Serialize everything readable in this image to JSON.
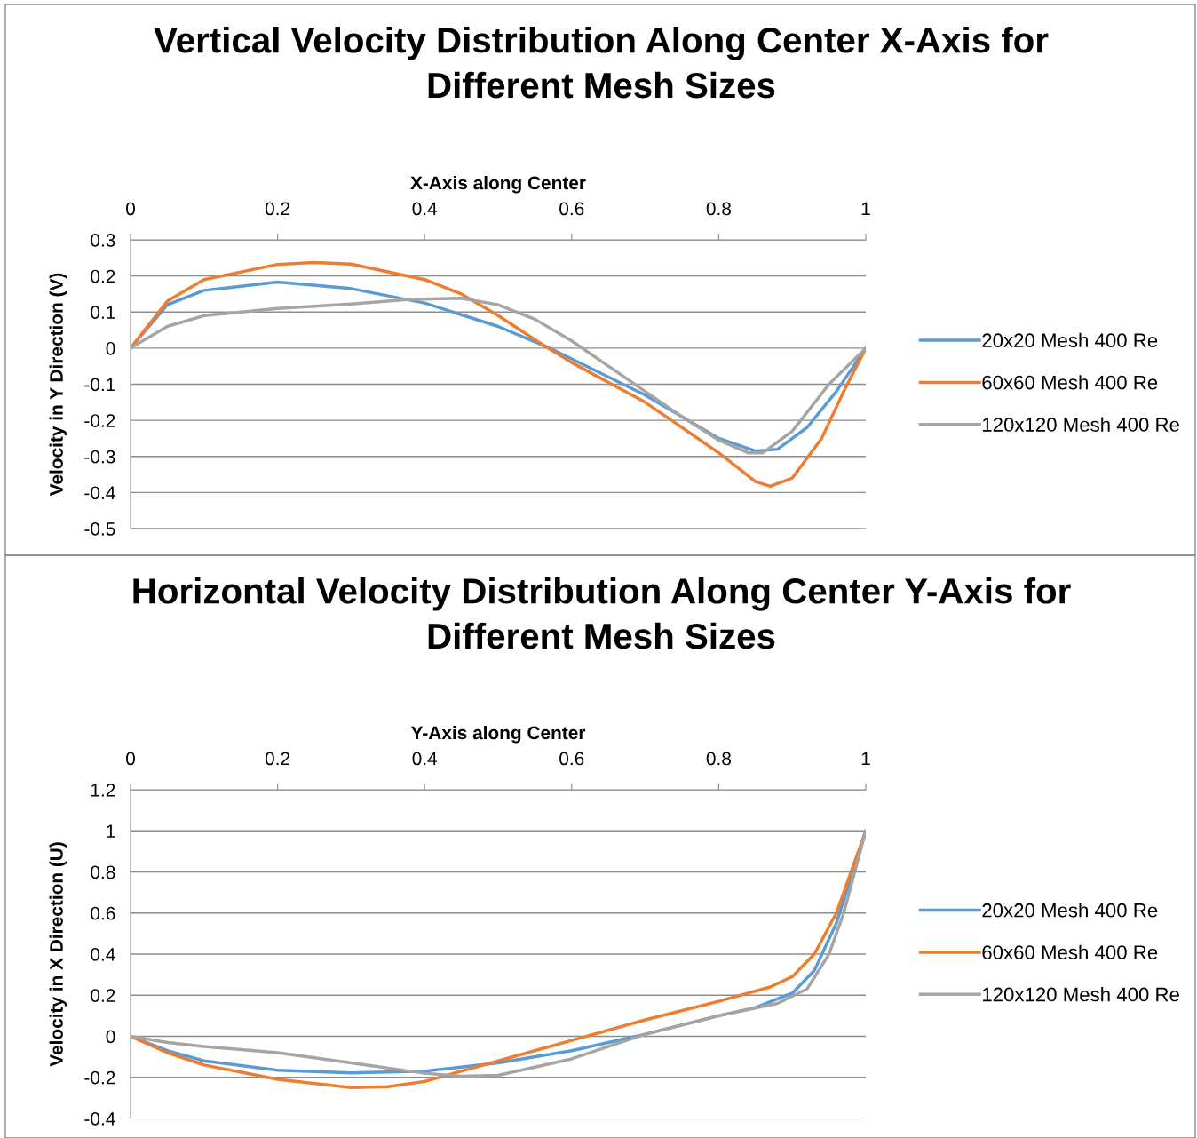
{
  "chart_data": [
    {
      "type": "line",
      "title": "Vertical Velocity Distribution Along Center X-Axis for Different Mesh Sizes",
      "xlabel": "X-Axis along Center",
      "ylabel": "Velocity in Y Direction (V)",
      "xlim": [
        0,
        1
      ],
      "xticks": [
        0,
        0.2,
        0.4,
        0.6,
        0.8,
        1
      ],
      "ylim": [
        -0.5,
        0.3
      ],
      "yticks": [
        -0.5,
        -0.4,
        -0.3,
        -0.2,
        -0.1,
        0,
        0.1,
        0.2,
        0.3
      ],
      "grid": "y",
      "legend": "right",
      "marker": "none",
      "line_style": "solid",
      "series": [
        {
          "name": "20x20 Mesh 400 Re",
          "color": "#5b9bd5",
          "x": [
            0,
            0.05,
            0.1,
            0.2,
            0.3,
            0.4,
            0.5,
            0.57,
            0.6,
            0.7,
            0.75,
            0.8,
            0.85,
            0.88,
            0.92,
            0.96,
            1
          ],
          "values": [
            0,
            0.12,
            0.16,
            0.183,
            0.165,
            0.125,
            0.06,
            0,
            -0.03,
            -0.13,
            -0.19,
            -0.25,
            -0.285,
            -0.28,
            -0.22,
            -0.12,
            0
          ]
        },
        {
          "name": "60x60 Mesh 400 Re",
          "color": "#ed7d31",
          "x": [
            0,
            0.05,
            0.1,
            0.2,
            0.25,
            0.3,
            0.4,
            0.45,
            0.5,
            0.56,
            0.6,
            0.7,
            0.8,
            0.85,
            0.87,
            0.9,
            0.94,
            0.97,
            1
          ],
          "values": [
            0,
            0.13,
            0.19,
            0.232,
            0.237,
            0.233,
            0.19,
            0.15,
            0.09,
            0.01,
            -0.04,
            -0.15,
            -0.29,
            -0.37,
            -0.383,
            -0.36,
            -0.25,
            -0.12,
            0
          ]
        },
        {
          "name": "120x120 Mesh 400 Re",
          "color": "#a5a5a5",
          "x": [
            0,
            0.05,
            0.1,
            0.2,
            0.3,
            0.38,
            0.45,
            0.5,
            0.55,
            0.6,
            0.65,
            0.7,
            0.75,
            0.8,
            0.84,
            0.86,
            0.9,
            0.95,
            1
          ],
          "values": [
            0,
            0.06,
            0.09,
            0.11,
            0.122,
            0.135,
            0.138,
            0.12,
            0.08,
            0.02,
            -0.05,
            -0.12,
            -0.19,
            -0.255,
            -0.29,
            -0.29,
            -0.23,
            -0.1,
            0
          ]
        }
      ]
    },
    {
      "type": "line",
      "title": "Horizontal Velocity Distribution Along Center Y-Axis for Different Mesh Sizes",
      "xlabel": "Y-Axis along Center",
      "ylabel": "Velocity in X Direction (U)",
      "xlim": [
        0,
        1
      ],
      "xticks": [
        0,
        0.2,
        0.4,
        0.6,
        0.8,
        1
      ],
      "ylim": [
        -0.4,
        1.2
      ],
      "yticks": [
        -0.4,
        -0.2,
        0,
        0.2,
        0.4,
        0.6,
        0.8,
        1,
        1.2
      ],
      "grid": "y",
      "legend": "right",
      "marker": "none",
      "line_style": "solid",
      "series": [
        {
          "name": "20x20 Mesh 400 Re",
          "color": "#5b9bd5",
          "x": [
            0,
            0.05,
            0.1,
            0.2,
            0.3,
            0.4,
            0.5,
            0.6,
            0.7,
            0.8,
            0.85,
            0.9,
            0.93,
            0.96,
            1
          ],
          "values": [
            0,
            -0.07,
            -0.12,
            -0.165,
            -0.178,
            -0.17,
            -0.13,
            -0.07,
            0.01,
            0.1,
            0.14,
            0.21,
            0.32,
            0.55,
            1
          ]
        },
        {
          "name": "60x60 Mesh 400 Re",
          "color": "#ed7d31",
          "x": [
            0,
            0.05,
            0.1,
            0.2,
            0.3,
            0.35,
            0.4,
            0.5,
            0.6,
            0.7,
            0.8,
            0.87,
            0.9,
            0.93,
            0.96,
            1
          ],
          "values": [
            0,
            -0.08,
            -0.14,
            -0.21,
            -0.25,
            -0.245,
            -0.22,
            -0.12,
            -0.02,
            0.08,
            0.17,
            0.24,
            0.29,
            0.4,
            0.6,
            1
          ]
        },
        {
          "name": "120x120 Mesh 400 Re",
          "color": "#a5a5a5",
          "x": [
            0,
            0.05,
            0.1,
            0.2,
            0.3,
            0.4,
            0.45,
            0.5,
            0.6,
            0.7,
            0.8,
            0.88,
            0.92,
            0.95,
            0.97,
            1
          ],
          "values": [
            0,
            -0.03,
            -0.05,
            -0.08,
            -0.13,
            -0.18,
            -0.195,
            -0.19,
            -0.11,
            0.01,
            0.1,
            0.16,
            0.23,
            0.4,
            0.6,
            1
          ]
        }
      ]
    }
  ]
}
